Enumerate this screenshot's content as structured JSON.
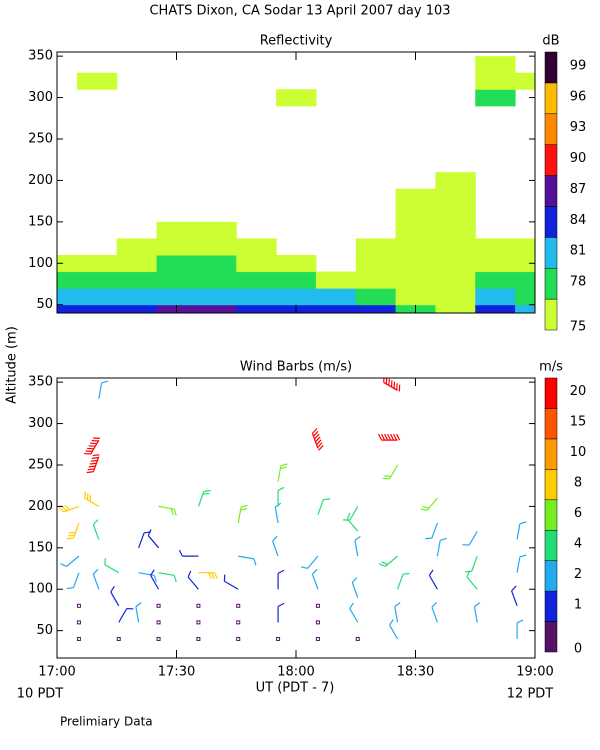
{
  "title": "CHATS Dixon, CA  Sodar  13 April 2007  day 103",
  "ylabel": "Altitude (m)",
  "xlabel": "UT  (PDT - 7)",
  "x_start_label": "10 PDT",
  "x_end_label": "12 PDT",
  "note": "Prelimiary Data",
  "chart_data": [
    {
      "type": "contour",
      "title": "Reflectivity",
      "colorbar_label": "dB",
      "x": [
        0,
        10,
        20,
        30,
        40,
        50,
        60,
        70,
        80,
        90,
        100,
        110,
        120
      ],
      "y": [
        40,
        60,
        80,
        100,
        120,
        140,
        160,
        180,
        200,
        220,
        240,
        260,
        280,
        300,
        320,
        340
      ],
      "values": [
        [
          85,
          82,
          79,
          76,
          null,
          null,
          null,
          null,
          null,
          null,
          null,
          null,
          null,
          null,
          null,
          null
        ],
        [
          85,
          82,
          79,
          76,
          null,
          null,
          null,
          null,
          null,
          null,
          null,
          null,
          null,
          null,
          76,
          null
        ],
        [
          85,
          82,
          79,
          76,
          76,
          null,
          null,
          null,
          null,
          null,
          null,
          null,
          null,
          null,
          null,
          null
        ],
        [
          88,
          83,
          80,
          79,
          76,
          76,
          null,
          null,
          null,
          null,
          null,
          null,
          null,
          null,
          null,
          null
        ],
        [
          87,
          83,
          80,
          78,
          76,
          76,
          null,
          null,
          null,
          null,
          null,
          null,
          null,
          null,
          null,
          null
        ],
        [
          86,
          82,
          80,
          77,
          76,
          null,
          null,
          null,
          null,
          null,
          null,
          null,
          null,
          null,
          null,
          null
        ],
        [
          85,
          82,
          79,
          76,
          null,
          null,
          null,
          null,
          null,
          null,
          null,
          null,
          null,
          76,
          null,
          null
        ],
        [
          84,
          81,
          76,
          null,
          null,
          null,
          null,
          null,
          null,
          null,
          null,
          null,
          null,
          null,
          null,
          null
        ],
        [
          84,
          79,
          76,
          76,
          76,
          null,
          null,
          null,
          null,
          null,
          null,
          null,
          null,
          null,
          null,
          null
        ],
        [
          79,
          77,
          76,
          76,
          76,
          76,
          76,
          76,
          null,
          null,
          null,
          null,
          null,
          null,
          null,
          null
        ],
        [
          76,
          76,
          76,
          76,
          76,
          76,
          76,
          76,
          76,
          null,
          null,
          null,
          null,
          null,
          null,
          null
        ],
        [
          85,
          82,
          79,
          76,
          76,
          null,
          null,
          null,
          null,
          null,
          null,
          null,
          null,
          79,
          76,
          76
        ],
        [
          83,
          80,
          79,
          76,
          76,
          null,
          null,
          null,
          null,
          null,
          null,
          null,
          null,
          null,
          76,
          null
        ]
      ],
      "levels": [
        75,
        78,
        81,
        84,
        87,
        90,
        93,
        96,
        99
      ],
      "colors": [
        "#ccff33",
        "#22dd55",
        "#22bbee",
        "#1122dd",
        "#551199",
        "#ff1111",
        "#ff8800",
        "#ffbb00",
        "#330033"
      ],
      "xlim": [
        0,
        120
      ],
      "ylim": [
        40,
        355
      ],
      "xticks": [
        {
          "value": 0,
          "label": "17:00"
        },
        {
          "value": 30,
          "label": "17:30"
        },
        {
          "value": 60,
          "label": "18:00"
        },
        {
          "value": 90,
          "label": "18:30"
        },
        {
          "value": 120,
          "label": "19:00"
        }
      ],
      "yticks": [
        50,
        100,
        150,
        200,
        250,
        300,
        350
      ]
    },
    {
      "type": "barbs",
      "title": "Wind Barbs (m/s)",
      "colorbar_label": "m/s",
      "x": [
        5.5,
        5.5,
        5.5,
        15.5,
        25.5,
        25.5,
        25.5,
        35.5,
        35.5,
        35.5,
        45.5,
        45.5,
        45.5,
        55.5,
        65.5,
        65.5,
        65.5,
        75.5,
        5.5,
        5.5,
        5.5,
        5.5,
        10.5,
        10.5,
        10.5,
        10.5,
        10.5,
        10.5,
        15.5,
        15.5,
        15.5,
        20.5,
        20.5,
        20.5,
        25.5,
        25.5,
        25.5,
        25.5,
        35.5,
        35.5,
        35.5,
        35.5,
        45.5,
        45.5,
        45.5,
        55.5,
        55.5,
        55.5,
        55.5,
        55.5,
        55.5,
        65.5,
        65.5,
        65.5,
        65.5,
        75.5,
        75.5,
        75.5,
        75.5,
        75.5,
        85.5,
        85.5,
        85.5,
        85.5,
        85.5,
        85.5,
        85.5,
        95.5,
        95.5,
        95.5,
        95.5,
        95.5,
        105.5,
        105.5,
        105.5,
        105.5,
        115.5,
        115.5,
        115.5,
        115.5
      ],
      "altitude": [
        40,
        60,
        80,
        40,
        40,
        60,
        80,
        40,
        60,
        80,
        40,
        60,
        80,
        40,
        40,
        60,
        80,
        40,
        120,
        140,
        180,
        200,
        100,
        160,
        200,
        260,
        280,
        330,
        60,
        80,
        120,
        60,
        120,
        150,
        100,
        120,
        150,
        200,
        100,
        140,
        200,
        120,
        100,
        140,
        180,
        60,
        100,
        140,
        180,
        200,
        230,
        100,
        140,
        190,
        270,
        60,
        90,
        140,
        170,
        200,
        40,
        60,
        100,
        140,
        250,
        280,
        340,
        60,
        100,
        140,
        180,
        210,
        60,
        100,
        140,
        170,
        40,
        80,
        120,
        160
      ],
      "speed": [
        0,
        0,
        0,
        0,
        0,
        0,
        0,
        0,
        0,
        0,
        0,
        0,
        0,
        0,
        0,
        0,
        0,
        0,
        3,
        3,
        8,
        8,
        2,
        4,
        8,
        20,
        20,
        3,
        1,
        1,
        4,
        2,
        2,
        1,
        1,
        4,
        1,
        6,
        1,
        1,
        5,
        8,
        1,
        3,
        6,
        1,
        1,
        2,
        3,
        4,
        6,
        2,
        3,
        4,
        20,
        3,
        3,
        3,
        4,
        4,
        3,
        2,
        4,
        5,
        6,
        20,
        20,
        2,
        1,
        3,
        2,
        6,
        3,
        4,
        4,
        3,
        3,
        1,
        2,
        3
      ],
      "direction": [
        0,
        0,
        0,
        0,
        0,
        0,
        0,
        0,
        0,
        0,
        0,
        0,
        0,
        0,
        0,
        0,
        0,
        0,
        200,
        230,
        200,
        250,
        340,
        340,
        300,
        200,
        210,
        10,
        30,
        330,
        300,
        350,
        100,
        20,
        330,
        100,
        320,
        100,
        320,
        270,
        20,
        90,
        300,
        100,
        10,
        0,
        0,
        340,
        350,
        0,
        10,
        340,
        220,
        20,
        340,
        330,
        340,
        350,
        320,
        210,
        330,
        350,
        20,
        230,
        210,
        270,
        300,
        340,
        330,
        10,
        200,
        220,
        350,
        320,
        200,
        210,
        0,
        340,
        10,
        10
      ],
      "levels": [
        0,
        1,
        2,
        4,
        6,
        8,
        10,
        15,
        20
      ],
      "colors": [
        "#551166",
        "#1122dd",
        "#22aaee",
        "#22dd77",
        "#77ee22",
        "#ffcc00",
        "#ff9900",
        "#ff5500",
        "#ff0000"
      ],
      "xlim": [
        0,
        120
      ],
      "ylim": [
        17,
        355
      ],
      "xticks": [
        {
          "value": 0,
          "label": "17:00"
        },
        {
          "value": 30,
          "label": "17:30"
        },
        {
          "value": 60,
          "label": "18:00"
        },
        {
          "value": 90,
          "label": "18:30"
        },
        {
          "value": 120,
          "label": "19:00"
        }
      ],
      "yticks": [
        50,
        100,
        150,
        200,
        250,
        300,
        350
      ]
    }
  ]
}
